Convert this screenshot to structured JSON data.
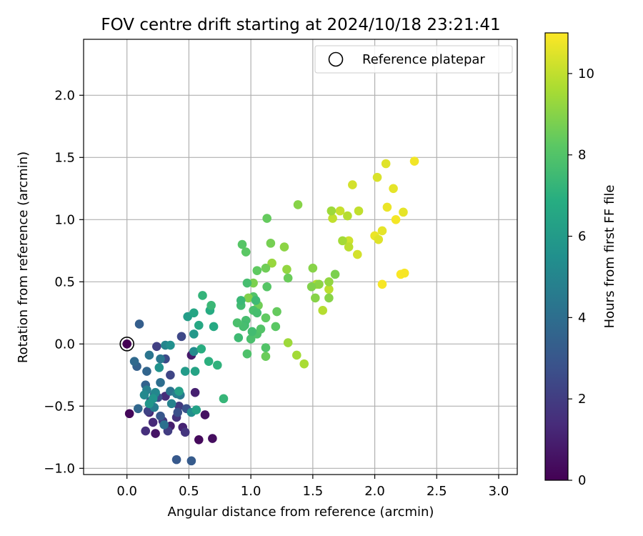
{
  "chart_data": {
    "type": "scatter",
    "title": "FOV centre drift starting at 2024/10/18 23:21:41",
    "xlabel": "Angular distance from reference (arcmin)",
    "ylabel": "Rotation from reference (arcmin)",
    "xlim": [
      -0.35,
      3.15
    ],
    "ylim": [
      -1.05,
      2.45
    ],
    "xticks": [
      0.0,
      0.5,
      1.0,
      1.5,
      2.0,
      2.5,
      3.0
    ],
    "xtick_labels": [
      "0.0",
      "0.5",
      "1.0",
      "1.5",
      "2.0",
      "2.5",
      "3.0"
    ],
    "yticks": [
      -1.0,
      -0.5,
      0.0,
      0.5,
      1.0,
      1.5,
      2.0
    ],
    "ytick_labels": [
      "−1.0",
      "−0.5",
      "0.0",
      "0.5",
      "1.0",
      "1.5",
      "2.0"
    ],
    "grid": true,
    "legend": {
      "placement": "upper right",
      "entries": [
        "Reference platepar"
      ]
    },
    "reference_point": {
      "x": 0.0,
      "y": 0.0
    },
    "colorbar": {
      "label": "Hours from first FF file",
      "colormap": "viridis",
      "range": [
        0,
        11
      ],
      "ticks": [
        0,
        2,
        4,
        6,
        8,
        10
      ],
      "tick_labels": [
        "0",
        "2",
        "4",
        "6",
        "8",
        "10"
      ]
    },
    "series": [
      {
        "color_by": "hours",
        "points": [
          {
            "x": 0.02,
            "y": -0.56,
            "h": 0.2
          },
          {
            "x": 0.58,
            "y": -0.77,
            "h": 0.3
          },
          {
            "x": 0.69,
            "y": -0.76,
            "h": 0.4
          },
          {
            "x": 0.63,
            "y": -0.57,
            "h": 0.5
          },
          {
            "x": 0.23,
            "y": -0.72,
            "h": 0.6
          },
          {
            "x": 0.52,
            "y": -0.09,
            "h": 0.8
          },
          {
            "x": 0.35,
            "y": -0.66,
            "h": 0.9
          },
          {
            "x": 0.55,
            "y": -0.39,
            "h": 1.0
          },
          {
            "x": 0.45,
            "y": -0.67,
            "h": 1.1
          },
          {
            "x": 0.18,
            "y": -0.55,
            "h": 1.2
          },
          {
            "x": 0.21,
            "y": -0.63,
            "h": 1.3
          },
          {
            "x": 0.31,
            "y": -0.42,
            "h": 1.4
          },
          {
            "x": 0.15,
            "y": -0.7,
            "h": 1.5
          },
          {
            "x": 0.4,
            "y": -0.59,
            "h": 1.6
          },
          {
            "x": 0.47,
            "y": -0.71,
            "h": 1.7
          },
          {
            "x": 0.29,
            "y": -0.62,
            "h": 1.8
          },
          {
            "x": 0.42,
            "y": -0.5,
            "h": 1.9
          },
          {
            "x": 0.33,
            "y": -0.7,
            "h": 2.0
          },
          {
            "x": 0.24,
            "y": -0.02,
            "h": 2.1
          },
          {
            "x": 0.17,
            "y": -0.54,
            "h": 2.2
          },
          {
            "x": 0.35,
            "y": -0.25,
            "h": 2.3
          },
          {
            "x": 0.44,
            "y": 0.06,
            "h": 2.4
          },
          {
            "x": 0.31,
            "y": -0.12,
            "h": 2.5
          },
          {
            "x": 0.25,
            "y": -0.43,
            "h": 2.6
          },
          {
            "x": 0.41,
            "y": -0.55,
            "h": 2.7
          },
          {
            "x": 0.48,
            "y": -0.52,
            "h": 2.8
          },
          {
            "x": 0.19,
            "y": -0.46,
            "h": 2.9
          },
          {
            "x": 0.27,
            "y": -0.58,
            "h": 3.0
          },
          {
            "x": 0.4,
            "y": -0.93,
            "h": 3.1
          },
          {
            "x": 0.52,
            "y": -0.94,
            "h": 3.2
          },
          {
            "x": 0.1,
            "y": 0.16,
            "h": 3.3
          },
          {
            "x": 0.08,
            "y": -0.18,
            "h": 3.4
          },
          {
            "x": 0.15,
            "y": -0.33,
            "h": 3.5
          },
          {
            "x": 0.16,
            "y": -0.22,
            "h": 3.6
          },
          {
            "x": 0.09,
            "y": -0.52,
            "h": 3.7
          },
          {
            "x": 0.06,
            "y": -0.14,
            "h": 3.8
          },
          {
            "x": 0.22,
            "y": -0.41,
            "h": 3.9
          },
          {
            "x": 0.27,
            "y": -0.31,
            "h": 4.0
          },
          {
            "x": 0.3,
            "y": -0.65,
            "h": 4.1
          },
          {
            "x": 0.35,
            "y": -0.38,
            "h": 4.2
          },
          {
            "x": 0.18,
            "y": -0.09,
            "h": 4.3
          },
          {
            "x": 0.27,
            "y": -0.12,
            "h": 4.4
          },
          {
            "x": 0.43,
            "y": -0.41,
            "h": 4.5
          },
          {
            "x": 0.22,
            "y": -0.51,
            "h": 4.6
          },
          {
            "x": 0.4,
            "y": -0.4,
            "h": 4.7
          },
          {
            "x": 0.16,
            "y": -0.37,
            "h": 4.8
          },
          {
            "x": 0.36,
            "y": -0.48,
            "h": 4.9
          },
          {
            "x": 0.31,
            "y": -0.01,
            "h": 5.0
          },
          {
            "x": 0.23,
            "y": -0.39,
            "h": 5.1
          },
          {
            "x": 0.14,
            "y": -0.41,
            "h": 5.2
          },
          {
            "x": 0.54,
            "y": -0.06,
            "h": 5.3
          },
          {
            "x": 0.52,
            "y": -0.55,
            "h": 5.4
          },
          {
            "x": 0.35,
            "y": -0.01,
            "h": 5.5
          },
          {
            "x": 0.26,
            "y": -0.19,
            "h": 5.6
          },
          {
            "x": 0.21,
            "y": -0.44,
            "h": 5.7
          },
          {
            "x": 0.18,
            "y": -0.48,
            "h": 5.8
          },
          {
            "x": 0.54,
            "y": 0.08,
            "h": 5.9
          },
          {
            "x": 0.47,
            "y": -0.22,
            "h": 6.0
          },
          {
            "x": 0.49,
            "y": 0.22,
            "h": 6.1
          },
          {
            "x": 0.42,
            "y": -0.38,
            "h": 6.2
          },
          {
            "x": 0.56,
            "y": -0.53,
            "h": 6.3
          },
          {
            "x": 0.55,
            "y": -0.22,
            "h": 6.4
          },
          {
            "x": 0.54,
            "y": 0.25,
            "h": 6.5
          },
          {
            "x": 0.58,
            "y": 0.15,
            "h": 6.6
          },
          {
            "x": 0.7,
            "y": 0.14,
            "h": 6.7
          },
          {
            "x": 0.67,
            "y": 0.27,
            "h": 6.8
          },
          {
            "x": 0.6,
            "y": -0.04,
            "h": 6.9
          },
          {
            "x": 0.66,
            "y": -0.14,
            "h": 7.0
          },
          {
            "x": 0.73,
            "y": -0.17,
            "h": 7.1
          },
          {
            "x": 0.61,
            "y": 0.39,
            "h": 7.2
          },
          {
            "x": 0.78,
            "y": -0.44,
            "h": 7.3
          },
          {
            "x": 0.68,
            "y": 0.31,
            "h": 7.4
          },
          {
            "x": 0.9,
            "y": 0.05,
            "h": 7.5
          },
          {
            "x": 0.92,
            "y": 0.31,
            "h": 7.6
          },
          {
            "x": 0.96,
            "y": 0.19,
            "h": 7.7
          },
          {
            "x": 1.0,
            "y": 0.04,
            "h": 7.8
          },
          {
            "x": 0.97,
            "y": -0.08,
            "h": 7.9
          },
          {
            "x": 1.02,
            "y": 0.38,
            "h": 8.0
          },
          {
            "x": 0.93,
            "y": 0.8,
            "h": 8.1
          },
          {
            "x": 0.96,
            "y": 0.74,
            "h": 8.2
          },
          {
            "x": 1.05,
            "y": 0.59,
            "h": 8.3
          },
          {
            "x": 1.13,
            "y": 1.01,
            "h": 8.4
          },
          {
            "x": 1.12,
            "y": -0.1,
            "h": 8.5
          },
          {
            "x": 1.06,
            "y": 0.31,
            "h": 8.6
          },
          {
            "x": 1.16,
            "y": 0.81,
            "h": 8.7
          },
          {
            "x": 1.02,
            "y": 0.49,
            "h": 8.8
          },
          {
            "x": 0.98,
            "y": 0.37,
            "h": 8.9
          },
          {
            "x": 1.38,
            "y": 1.12,
            "h": 9.0
          },
          {
            "x": 1.27,
            "y": 0.78,
            "h": 9.1
          },
          {
            "x": 1.29,
            "y": 0.6,
            "h": 9.2
          },
          {
            "x": 1.17,
            "y": 0.65,
            "h": 9.3
          },
          {
            "x": 1.3,
            "y": 0.01,
            "h": 9.4
          },
          {
            "x": 1.37,
            "y": -0.09,
            "h": 9.5
          },
          {
            "x": 1.43,
            "y": -0.16,
            "h": 9.6
          },
          {
            "x": 1.53,
            "y": 0.48,
            "h": 9.7
          },
          {
            "x": 1.58,
            "y": 0.27,
            "h": 9.8
          },
          {
            "x": 1.63,
            "y": 0.44,
            "h": 9.9
          },
          {
            "x": 1.66,
            "y": 1.01,
            "h": 10.0
          },
          {
            "x": 1.72,
            "y": 1.07,
            "h": 10.1
          },
          {
            "x": 1.79,
            "y": 0.83,
            "h": 10.2
          },
          {
            "x": 1.86,
            "y": 0.72,
            "h": 10.3
          },
          {
            "x": 2.02,
            "y": 1.34,
            "h": 10.4
          },
          {
            "x": 2.09,
            "y": 1.45,
            "h": 10.5
          },
          {
            "x": 2.15,
            "y": 1.25,
            "h": 10.6
          },
          {
            "x": 2.1,
            "y": 1.1,
            "h": 10.7
          },
          {
            "x": 2.32,
            "y": 1.47,
            "h": 10.8
          },
          {
            "x": 2.17,
            "y": 1.0,
            "h": 10.85
          },
          {
            "x": 2.06,
            "y": 0.48,
            "h": 10.9
          },
          {
            "x": 2.21,
            "y": 0.56,
            "h": 10.95
          },
          {
            "x": 2.24,
            "y": 0.57,
            "h": 10.9
          },
          {
            "x": 2.23,
            "y": 1.06,
            "h": 10.6
          },
          {
            "x": 2.0,
            "y": 0.87,
            "h": 10.7
          },
          {
            "x": 2.06,
            "y": 0.91,
            "h": 10.6
          },
          {
            "x": 2.03,
            "y": 0.84,
            "h": 10.5
          },
          {
            "x": 1.82,
            "y": 1.28,
            "h": 10.3
          },
          {
            "x": 1.87,
            "y": 1.07,
            "h": 10.0
          },
          {
            "x": 1.78,
            "y": 1.03,
            "h": 9.8
          },
          {
            "x": 1.79,
            "y": 0.78,
            "h": 9.9
          },
          {
            "x": 1.74,
            "y": 0.83,
            "h": 9.5
          },
          {
            "x": 1.65,
            "y": 1.07,
            "h": 9.4
          },
          {
            "x": 1.68,
            "y": 0.56,
            "h": 8.8
          },
          {
            "x": 1.63,
            "y": 0.37,
            "h": 9.0
          },
          {
            "x": 1.63,
            "y": 0.5,
            "h": 9.2
          },
          {
            "x": 1.55,
            "y": 0.48,
            "h": 9.1
          },
          {
            "x": 1.5,
            "y": 0.61,
            "h": 9.0
          },
          {
            "x": 1.52,
            "y": 0.37,
            "h": 9.0
          },
          {
            "x": 1.49,
            "y": 0.46,
            "h": 8.9
          },
          {
            "x": 1.3,
            "y": 0.53,
            "h": 8.5
          },
          {
            "x": 1.21,
            "y": 0.26,
            "h": 8.4
          },
          {
            "x": 1.2,
            "y": 0.14,
            "h": 8.2
          },
          {
            "x": 1.13,
            "y": 0.46,
            "h": 8.1
          },
          {
            "x": 1.12,
            "y": 0.61,
            "h": 8.6
          },
          {
            "x": 1.12,
            "y": 0.21,
            "h": 8.3
          },
          {
            "x": 1.12,
            "y": -0.03,
            "h": 8.0
          },
          {
            "x": 1.05,
            "y": 0.08,
            "h": 7.9
          },
          {
            "x": 1.08,
            "y": 0.12,
            "h": 8.0
          },
          {
            "x": 1.02,
            "y": 0.27,
            "h": 7.8
          },
          {
            "x": 0.95,
            "y": 0.15,
            "h": 7.6
          },
          {
            "x": 0.94,
            "y": 0.14,
            "h": 7.7
          },
          {
            "x": 0.89,
            "y": 0.17,
            "h": 7.8
          },
          {
            "x": 0.92,
            "y": 0.35,
            "h": 7.4
          },
          {
            "x": 1.05,
            "y": 0.25,
            "h": 7.7
          },
          {
            "x": 1.04,
            "y": 0.35,
            "h": 7.5
          },
          {
            "x": 1.01,
            "y": 0.1,
            "h": 7.6
          },
          {
            "x": 0.97,
            "y": 0.49,
            "h": 7.7
          }
        ]
      }
    ]
  }
}
